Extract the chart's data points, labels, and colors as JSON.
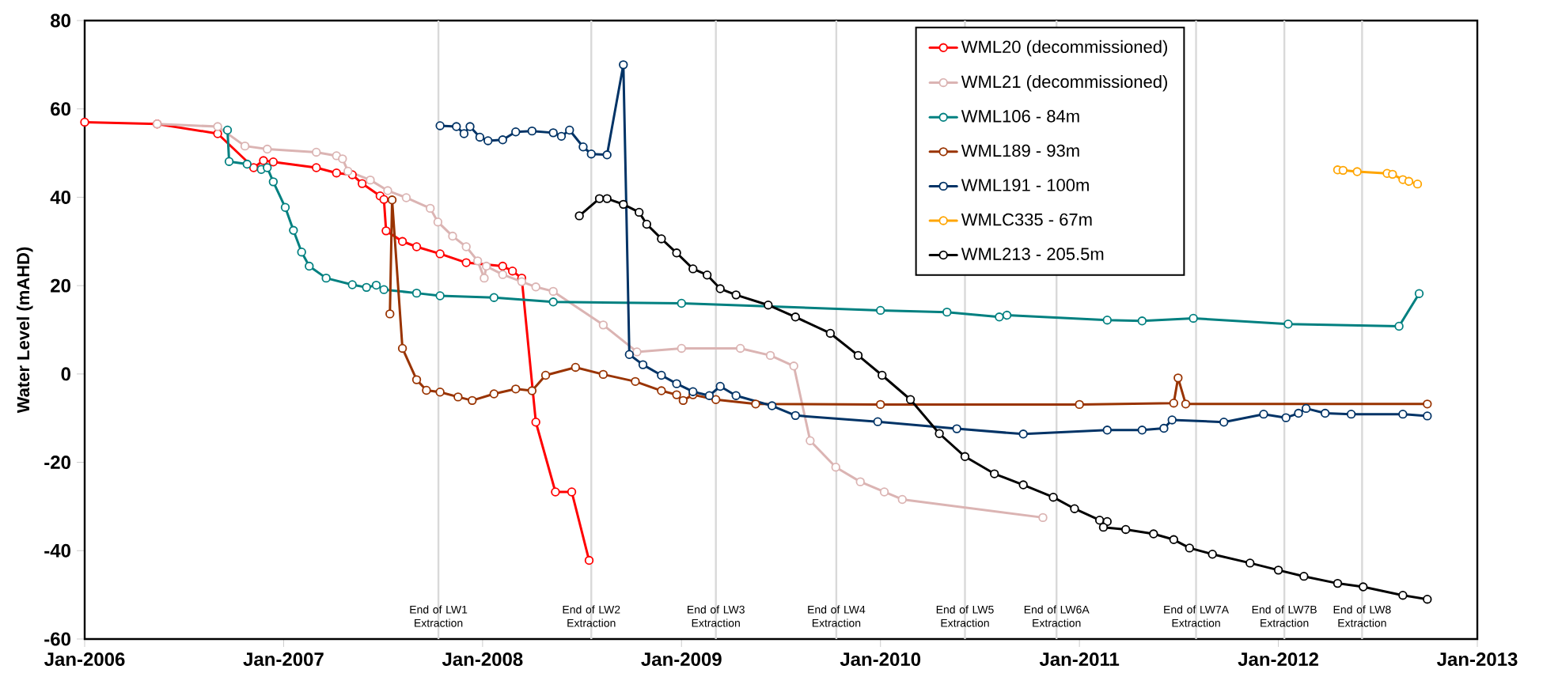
{
  "chart_data": {
    "type": "line",
    "ylabel": "Water Level (mAHD)",
    "xlim": [
      "2006-01-01",
      "2013-01-01"
    ],
    "xticks": [
      {
        "value": "2006-01-01",
        "label": "Jan-2006"
      },
      {
        "value": "2007-01-01",
        "label": "Jan-2007"
      },
      {
        "value": "2008-01-01",
        "label": "Jan-2008"
      },
      {
        "value": "2009-01-01",
        "label": "Jan-2009"
      },
      {
        "value": "2010-01-01",
        "label": "Jan-2010"
      },
      {
        "value": "2011-01-01",
        "label": "Jan-2011"
      },
      {
        "value": "2012-01-01",
        "label": "Jan-2012"
      },
      {
        "value": "2013-01-01",
        "label": "Jan-2013"
      }
    ],
    "ylim": [
      -60,
      80
    ],
    "yticks": [
      -60,
      -40,
      -20,
      0,
      20,
      40,
      60,
      80
    ],
    "marker": "circle",
    "line_style": "solid",
    "legend": "top right",
    "series": [
      {
        "name": "WML20 (decommissioned)",
        "color": "#ff0000",
        "x": [
          "2006-01-01",
          "2006-05-14",
          "2006-09-02",
          "2006-11-07",
          "2006-11-25",
          "2006-12-13",
          "2007-03-02",
          "2007-04-08",
          "2007-05-07",
          "2007-05-25",
          "2007-06-27",
          "2007-07-04",
          "2007-07-08",
          "2007-08-07",
          "2007-09-02",
          "2007-10-15",
          "2007-12-02",
          "2008-02-07",
          "2008-02-25",
          "2008-03-13",
          "2008-04-08",
          "2008-05-14",
          "2008-06-13",
          "2008-07-15"
        ],
        "values": [
          57,
          56.6,
          54.4,
          46.7,
          48.3,
          48.0,
          46.7,
          45.5,
          45.1,
          43.1,
          40.3,
          39.5,
          32.4,
          30.0,
          28.8,
          27.2,
          25.2,
          24.4,
          23.3,
          21.7,
          -10.9,
          -26.7,
          -26.7,
          -42.2
        ]
      },
      {
        "name": "WML21 (decommissioned)",
        "color": "#dbb4b3",
        "x": [
          "2006-05-14",
          "2006-09-02",
          "2006-10-22",
          "2006-12-02",
          "2007-03-02",
          "2007-04-08",
          "2007-04-19",
          "2007-04-29",
          "2007-06-09",
          "2007-07-11",
          "2007-08-14",
          "2007-09-27",
          "2007-10-11",
          "2007-11-07",
          "2007-12-02",
          "2007-12-23",
          "2008-01-04",
          "2008-01-08",
          "2008-02-07",
          "2008-03-13",
          "2008-04-08",
          "2008-05-10",
          "2008-08-10",
          "2008-10-11",
          "2009-01-01",
          "2009-04-19",
          "2009-06-13",
          "2009-07-26",
          "2009-08-25",
          "2009-10-11",
          "2009-11-25",
          "2010-01-08",
          "2010-02-10",
          "2010-10-26"
        ],
        "values": [
          56.6,
          56.0,
          51.6,
          50.9,
          50.2,
          49.4,
          48.7,
          45.9,
          43.9,
          41.5,
          39.9,
          37.5,
          34.4,
          31.2,
          28.8,
          25.6,
          21.7,
          24.4,
          22.5,
          20.9,
          19.7,
          18.7,
          11.1,
          5.0,
          5.8,
          5.8,
          4.2,
          1.8,
          -15.1,
          -21.1,
          -24.4,
          -26.7,
          -28.4,
          -32.5
        ]
      },
      {
        "name": "WML106 - 84m",
        "color": "#008080",
        "x": [
          "2006-09-20",
          "2006-09-23",
          "2006-10-26",
          "2006-11-21",
          "2006-12-02",
          "2006-12-13",
          "2007-01-04",
          "2007-01-19",
          "2007-02-03",
          "2007-02-17",
          "2007-03-20",
          "2007-05-07",
          "2007-06-02",
          "2007-06-20",
          "2007-07-04",
          "2007-09-02",
          "2007-10-15",
          "2008-01-22",
          "2008-05-10",
          "2009-01-01",
          "2010-01-01",
          "2010-05-03",
          "2010-08-07",
          "2010-08-21",
          "2011-02-21",
          "2011-04-26",
          "2011-07-29",
          "2012-01-19",
          "2012-08-10",
          "2012-09-16"
        ],
        "values": [
          55.2,
          48.1,
          47.5,
          46.3,
          46.7,
          43.5,
          37.7,
          32.5,
          27.6,
          24.4,
          21.7,
          20.2,
          19.6,
          20.1,
          19.1,
          18.3,
          17.7,
          17.3,
          16.3,
          16.0,
          14.4,
          14.0,
          12.9,
          13.3,
          12.2,
          12.0,
          12.6,
          11.3,
          10.8,
          18.2
        ]
      },
      {
        "name": "WML189 - 93m",
        "color": "#993300",
        "x": [
          "2007-07-15",
          "2007-07-19",
          "2007-08-07",
          "2007-09-02",
          "2007-09-20",
          "2007-10-15",
          "2007-11-17",
          "2007-12-13",
          "2008-01-22",
          "2008-03-02",
          "2008-04-01",
          "2008-04-26",
          "2008-06-20",
          "2008-08-10",
          "2008-10-08",
          "2008-11-25",
          "2008-12-23",
          "2009-01-04",
          "2009-01-22",
          "2009-03-05",
          "2009-05-17",
          "2010-01-01",
          "2011-01-01",
          "2011-06-23",
          "2011-07-01",
          "2011-07-15",
          "2012-10-01"
        ],
        "values": [
          13.6,
          39.4,
          5.8,
          -1.3,
          -3.7,
          -4.1,
          -5.2,
          -6.0,
          -4.5,
          -3.4,
          -3.8,
          -0.3,
          1.5,
          -0.1,
          -1.7,
          -3.8,
          -4.7,
          -6.0,
          -4.7,
          -5.8,
          -6.8,
          -6.9,
          -6.9,
          -6.6,
          -0.9,
          -6.8,
          -6.8
        ]
      },
      {
        "name": "WML191 - 100m",
        "color": "#003366",
        "x": [
          "2007-10-15",
          "2007-11-14",
          "2007-11-28",
          "2007-12-09",
          "2007-12-27",
          "2008-01-11",
          "2008-02-07",
          "2008-03-02",
          "2008-04-01",
          "2008-05-10",
          "2008-05-25",
          "2008-06-09",
          "2008-07-04",
          "2008-07-19",
          "2008-08-17",
          "2008-09-16",
          "2008-09-27",
          "2008-10-22",
          "2008-11-25",
          "2008-12-23",
          "2009-01-22",
          "2009-02-21",
          "2009-03-13",
          "2009-04-11",
          "2009-06-16",
          "2009-07-29",
          "2009-12-27",
          "2010-05-21",
          "2010-09-20",
          "2011-02-21",
          "2011-04-26",
          "2011-06-05",
          "2011-06-20",
          "2011-09-23",
          "2011-12-05",
          "2012-01-15",
          "2012-02-07",
          "2012-02-21",
          "2012-03-27",
          "2012-05-14",
          "2012-08-17",
          "2012-10-01"
        ],
        "values": [
          56.2,
          56.0,
          54.4,
          56.0,
          53.6,
          52.8,
          53.0,
          54.8,
          55.0,
          54.6,
          53.8,
          55.2,
          51.4,
          49.8,
          49.6,
          70.0,
          4.4,
          2.1,
          -0.3,
          -2.2,
          -4.0,
          -4.9,
          -2.8,
          -4.9,
          -7.2,
          -9.4,
          -10.8,
          -12.4,
          -13.6,
          -12.7,
          -12.7,
          -12.3,
          -10.4,
          -10.9,
          -9.1,
          -9.9,
          -8.9,
          -7.8,
          -8.9,
          -9.1,
          -9.1,
          -9.5
        ]
      },
      {
        "name": "WMLC335 - 67m",
        "color": "#ffa500",
        "x": [
          "2012-04-19",
          "2012-04-29",
          "2012-05-25",
          "2012-07-19",
          "2012-07-29",
          "2012-08-17",
          "2012-08-28",
          "2012-09-13"
        ],
        "values": [
          46.2,
          46.1,
          45.8,
          45.4,
          45.2,
          44.0,
          43.6,
          43.0
        ]
      },
      {
        "name": "WML213 - 205.5m",
        "color": "#000000",
        "x": [
          "2008-06-27",
          "2008-08-03",
          "2008-08-17",
          "2008-09-16",
          "2008-10-15",
          "2008-10-29",
          "2008-11-25",
          "2008-12-23",
          "2009-01-22",
          "2009-02-17",
          "2009-03-13",
          "2009-04-11",
          "2009-06-09",
          "2009-07-29",
          "2009-10-01",
          "2009-11-21",
          "2010-01-04",
          "2010-02-25",
          "2010-04-19",
          "2010-06-05",
          "2010-07-29",
          "2010-09-20",
          "2010-11-14",
          "2010-12-23",
          "2011-02-07",
          "2011-02-21",
          "2011-02-14",
          "2011-03-27",
          "2011-05-17",
          "2011-06-23",
          "2011-07-22",
          "2011-09-02",
          "2011-11-10",
          "2012-01-01",
          "2012-02-17",
          "2012-04-19",
          "2012-06-05",
          "2012-08-17",
          "2012-10-01"
        ],
        "values": [
          35.8,
          39.7,
          39.7,
          38.4,
          36.6,
          33.9,
          30.6,
          27.4,
          23.8,
          22.4,
          19.3,
          17.9,
          15.6,
          12.9,
          9.2,
          4.2,
          -0.3,
          -5.8,
          -13.5,
          -18.7,
          -22.6,
          -25.1,
          -27.9,
          -30.5,
          -33.1,
          -33.4,
          -34.7,
          -35.2,
          -36.2,
          -37.5,
          -39.4,
          -40.8,
          -42.8,
          -44.4,
          -45.8,
          -47.4,
          -48.2,
          -50.1,
          -51.0
        ]
      }
    ],
    "ref_lines": [
      {
        "axis": "x",
        "value": "2007-10-12",
        "label": "End of LW1 Extraction",
        "color": "#d9d9d9"
      },
      {
        "axis": "x",
        "value": "2008-07-19",
        "label": "End of LW2 Extraction",
        "color": "#d9d9d9"
      },
      {
        "axis": "x",
        "value": "2009-03-05",
        "label": "End of LW3 Extraction",
        "color": "#d9d9d9"
      },
      {
        "axis": "x",
        "value": "2009-10-12",
        "label": "End of LW4 Extraction",
        "color": "#d9d9d9"
      },
      {
        "axis": "x",
        "value": "2010-06-05",
        "label": "End of LW5 Extraction",
        "color": "#d9d9d9"
      },
      {
        "axis": "x",
        "value": "2010-11-20",
        "label": "End of LW6A Extraction",
        "color": "#d9d9d9"
      },
      {
        "axis": "x",
        "value": "2011-08-03",
        "label": "End of LW7A Extraction",
        "color": "#d9d9d9"
      },
      {
        "axis": "x",
        "value": "2012-01-12",
        "label": "End of LW7B Extraction",
        "color": "#d9d9d9"
      },
      {
        "axis": "x",
        "value": "2012-06-03",
        "label": "End of LW8 Extraction",
        "color": "#d9d9d9"
      }
    ]
  }
}
